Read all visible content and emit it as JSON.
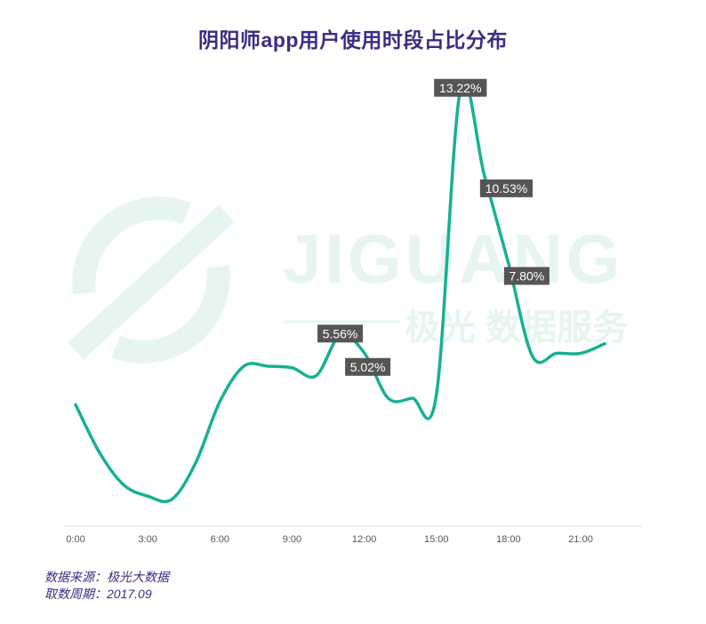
{
  "title": "阴阳师app用户使用时段占比分布",
  "footer": {
    "source": "数据来源：极光大数据",
    "period": "取数周期：2017.09"
  },
  "watermark": {
    "brand": "JIGUANG",
    "tagline": "极光 数据服务"
  },
  "colors": {
    "line": "#17b094",
    "label_bg": "#555555",
    "watermark": "#e7f5ef",
    "title": "#3d2b84"
  },
  "chart_data": {
    "type": "line",
    "title": "阴阳师app用户使用时段占比分布",
    "x_ticks": [
      "0:00",
      "3:00",
      "6:00",
      "9:00",
      "12:00",
      "15:00",
      "18:00",
      "21:00"
    ],
    "x": [
      0,
      1,
      2,
      3,
      4,
      5,
      6,
      7,
      8,
      9,
      10,
      11,
      12,
      13,
      14,
      15,
      16,
      17,
      18,
      19,
      20,
      21,
      22,
      23
    ],
    "y": [
      3.4,
      1.9,
      0.9,
      0.55,
      0.45,
      1.6,
      3.5,
      4.6,
      4.6,
      4.55,
      4.3,
      5.56,
      5.02,
      3.6,
      3.6,
      3.7,
      13.22,
      10.53,
      7.8,
      4.9,
      5.0,
      5.0,
      5.3,
      null
    ],
    "labels": [
      {
        "x": 11,
        "text": "5.56%"
      },
      {
        "x": 12,
        "text": "5.02%"
      },
      {
        "x": 16,
        "text": "13.22%"
      },
      {
        "x": 17,
        "text": "10.53%"
      },
      {
        "x": 18,
        "text": "7.80%"
      }
    ],
    "ylim": [
      0,
      14
    ],
    "grid": false,
    "legend": "none"
  }
}
